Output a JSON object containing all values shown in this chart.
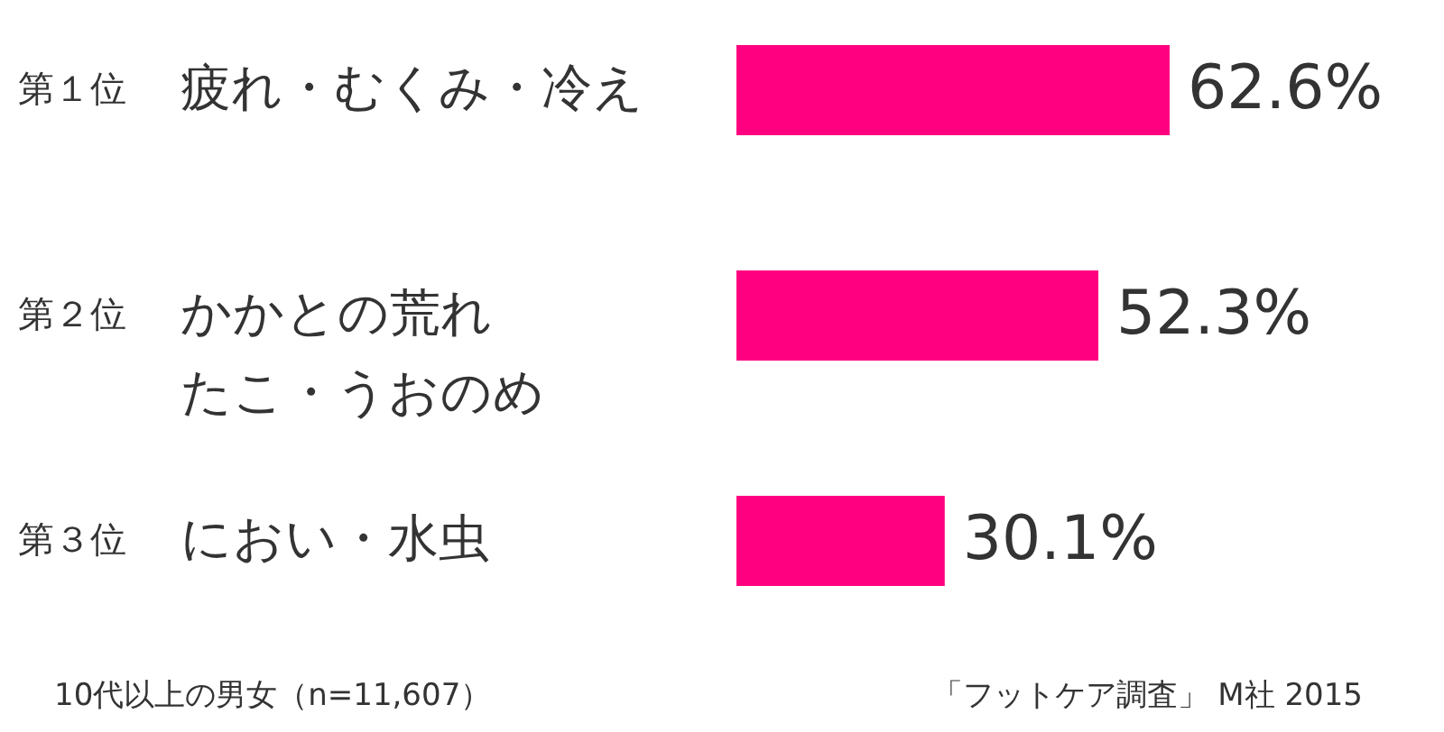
{
  "chart_data": {
    "type": "bar",
    "orientation": "horizontal",
    "categories": [
      "疲れ・むくみ・冷え",
      "かかとの荒れたこ・うおのめ",
      "におい・水虫"
    ],
    "values": [
      62.6,
      52.3,
      30.1
    ],
    "color": "#ff0080",
    "data_labels": true,
    "value_labels": [
      "62.6%",
      "52.3%",
      "30.1%"
    ],
    "annotations": [
      "第１位",
      "第２位",
      "第３位",
      "10代以上の男女（n=11,607）",
      "「フットケア調査」 M社 2015"
    ]
  }
}
